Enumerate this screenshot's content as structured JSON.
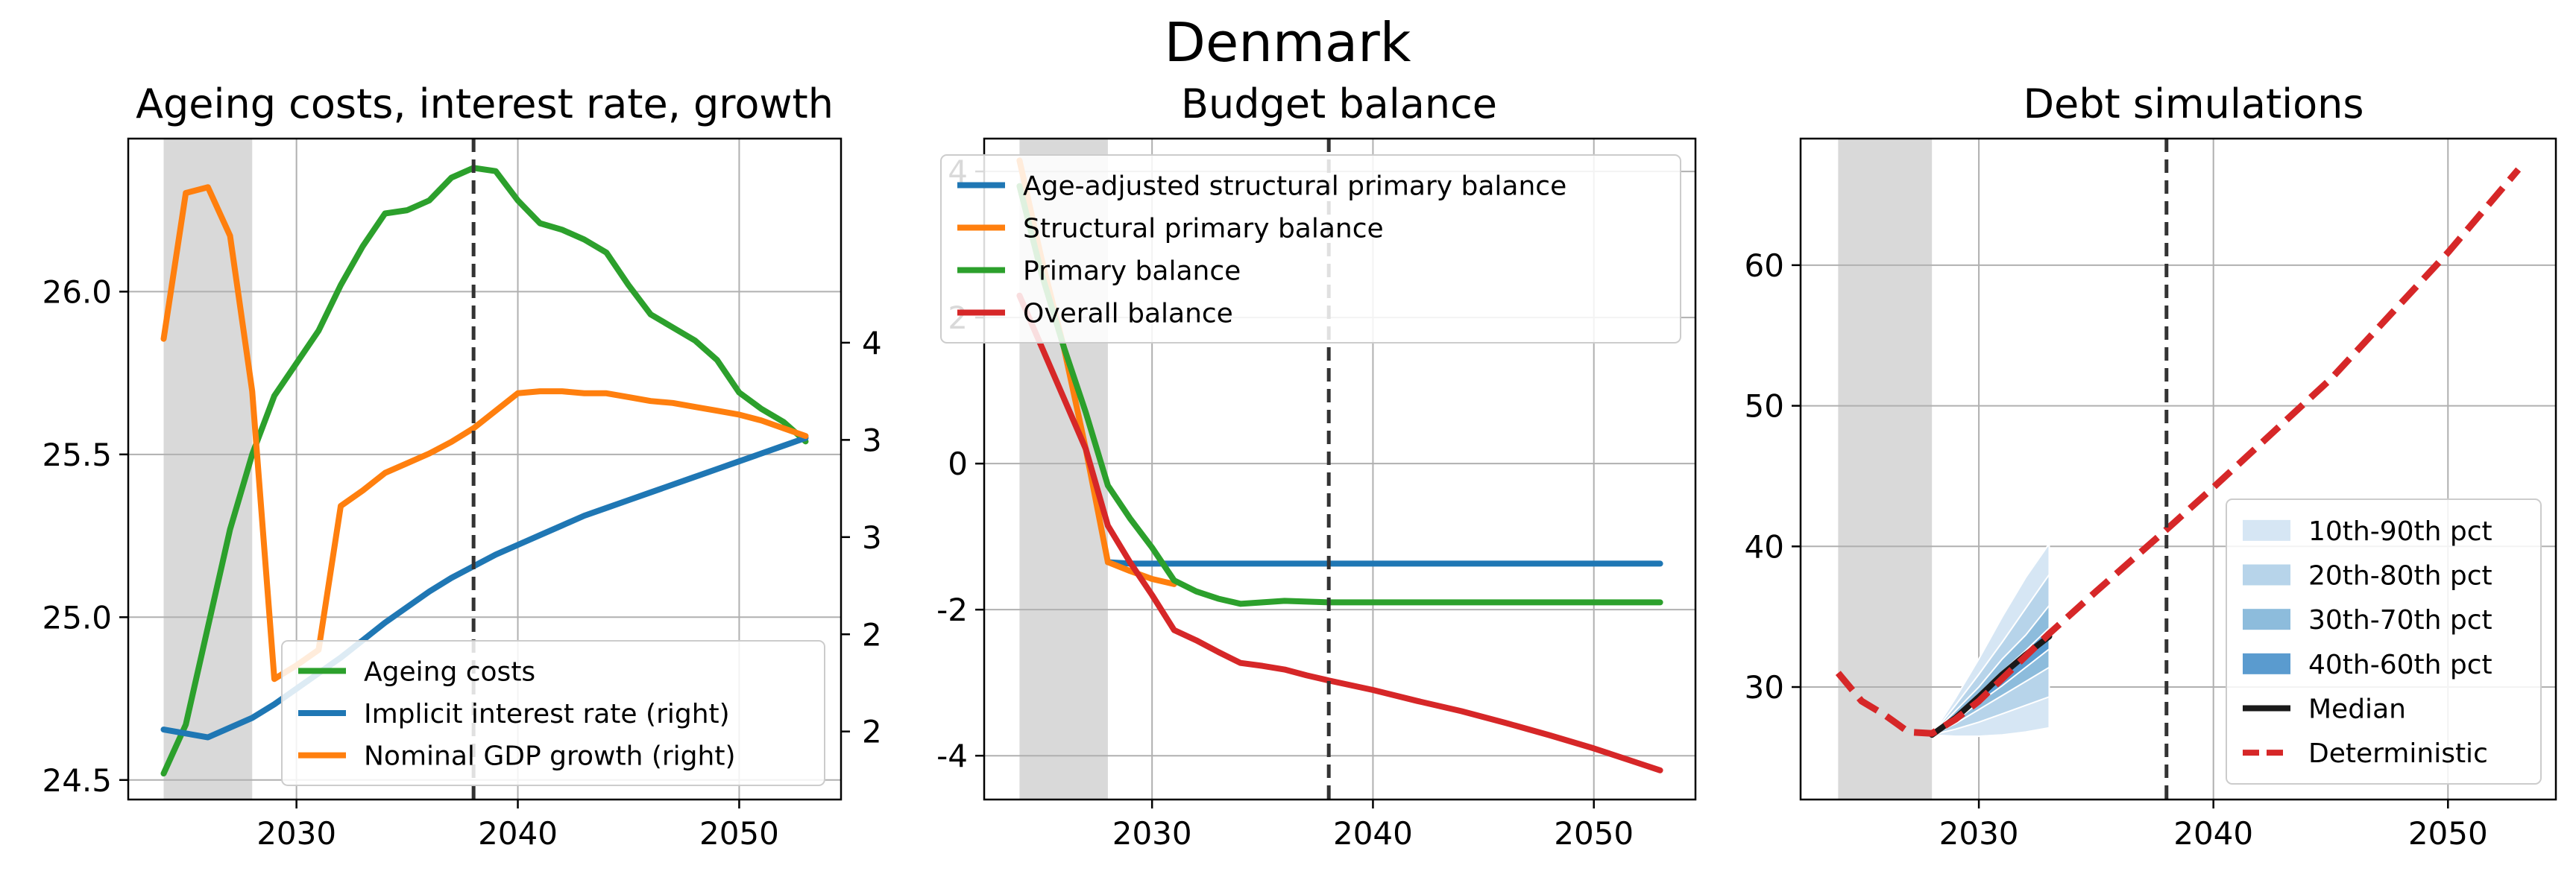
{
  "figure": {
    "suptitle": "Denmark"
  },
  "colors": {
    "blue": "#1f77b4",
    "orange": "#ff7f0e",
    "green": "#2ca02c",
    "red": "#d62728",
    "median": "#1a1a1a",
    "deterministic": "#d62728",
    "shade": "#d9d9d9",
    "fan": [
      "#d6e6f4",
      "#b7d4ea",
      "#8dbcdc",
      "#5a9bcf"
    ]
  },
  "chart_data": [
    {
      "type": "line",
      "title": "Ageing costs, interest rate, growth",
      "xlim": [
        2022.4,
        2054.6
      ],
      "xticks": [
        2030,
        2040,
        2050
      ],
      "ylim": [
        24.44,
        26.47
      ],
      "yticks": [
        24.5,
        25.0,
        25.5,
        26.0
      ],
      "ytick_labels": [
        "24.5",
        "25.0",
        "25.5",
        "26.0"
      ],
      "y2lim": [
        1.55,
        4.95
      ],
      "y2ticks": [
        1.9,
        2.4,
        2.9,
        3.4,
        3.9
      ],
      "y2tick_labels": [
        "2",
        "2",
        "3",
        "3",
        "4"
      ],
      "shade": [
        2024,
        2028
      ],
      "vline": 2038,
      "legend_loc": "lower-right",
      "series": [
        {
          "name": "Ageing costs",
          "axis": "left",
          "color": "#2ca02c",
          "x": [
            2024,
            2025,
            2026,
            2027,
            2028,
            2029,
            2030,
            2031,
            2032,
            2033,
            2034,
            2035,
            2036,
            2037,
            2038,
            2039,
            2040,
            2041,
            2042,
            2043,
            2044,
            2045,
            2046,
            2047,
            2048,
            2049,
            2050,
            2051,
            2052,
            2053
          ],
          "y": [
            24.52,
            24.67,
            24.97,
            25.27,
            25.5,
            25.68,
            25.78,
            25.88,
            26.02,
            26.14,
            26.24,
            26.25,
            26.28,
            26.35,
            26.38,
            26.37,
            26.28,
            26.21,
            26.19,
            26.16,
            26.12,
            26.02,
            25.93,
            25.89,
            25.85,
            25.79,
            25.69,
            25.64,
            25.6,
            25.54
          ]
        },
        {
          "name": "Implicit interest rate (right)",
          "axis": "right",
          "color": "#1f77b4",
          "x": [
            2024,
            2025,
            2026,
            2027,
            2028,
            2029,
            2030,
            2031,
            2032,
            2033,
            2034,
            2035,
            2036,
            2037,
            2038,
            2039,
            2040,
            2041,
            2042,
            2043,
            2044,
            2045,
            2046,
            2047,
            2048,
            2049,
            2050,
            2051,
            2052,
            2053
          ],
          "y": [
            1.91,
            1.89,
            1.87,
            1.92,
            1.97,
            2.04,
            2.12,
            2.2,
            2.28,
            2.37,
            2.46,
            2.54,
            2.62,
            2.69,
            2.75,
            2.81,
            2.86,
            2.91,
            2.96,
            3.01,
            3.05,
            3.09,
            3.13,
            3.17,
            3.21,
            3.25,
            3.29,
            3.33,
            3.37,
            3.41
          ]
        },
        {
          "name": "Nominal GDP growth (right)",
          "axis": "right",
          "color": "#ff7f0e",
          "x": [
            2024,
            2025,
            2026,
            2027,
            2028,
            2029,
            2030,
            2031,
            2032,
            2033,
            2034,
            2035,
            2036,
            2037,
            2038,
            2039,
            2040,
            2041,
            2042,
            2043,
            2044,
            2045,
            2046,
            2047,
            2048,
            2049,
            2050,
            2051,
            2052,
            2053
          ],
          "y": [
            3.92,
            4.67,
            4.7,
            4.45,
            3.65,
            2.17,
            2.24,
            2.32,
            3.06,
            3.14,
            3.23,
            3.28,
            3.33,
            3.39,
            3.46,
            3.55,
            3.64,
            3.65,
            3.65,
            3.64,
            3.64,
            3.62,
            3.6,
            3.59,
            3.57,
            3.55,
            3.53,
            3.5,
            3.46,
            3.42
          ]
        }
      ]
    },
    {
      "type": "line",
      "title": "Budget balance",
      "xlim": [
        2022.4,
        2054.6
      ],
      "xticks": [
        2030,
        2040,
        2050
      ],
      "ylim": [
        -4.6,
        4.45
      ],
      "yticks": [
        -4,
        -2,
        0,
        2,
        4
      ],
      "ytick_labels": [
        "-4",
        "-2",
        "0",
        "2",
        "4"
      ],
      "shade": [
        2024,
        2028
      ],
      "vline": 2038,
      "legend_loc": "upper-right",
      "series": [
        {
          "name": "Age-adjusted structural primary balance",
          "color": "#1f77b4",
          "x": [
            2028,
            2029,
            2030,
            2031,
            2032,
            2034,
            2036,
            2038,
            2040,
            2045,
            2050,
            2053
          ],
          "y": [
            -1.35,
            -1.37,
            -1.37,
            -1.37,
            -1.37,
            -1.37,
            -1.37,
            -1.37,
            -1.37,
            -1.37,
            -1.37,
            -1.37
          ]
        },
        {
          "name": "Structural primary balance",
          "color": "#ff7f0e",
          "x": [
            2024,
            2025,
            2026,
            2027,
            2028,
            2029,
            2030,
            2031
          ],
          "y": [
            4.15,
            2.8,
            1.6,
            0.2,
            -1.35,
            -1.47,
            -1.58,
            -1.65
          ]
        },
        {
          "name": "Primary balance",
          "color": "#2ca02c",
          "x": [
            2024,
            2025,
            2026,
            2027,
            2028,
            2029,
            2030,
            2031,
            2032,
            2033,
            2034,
            2035,
            2036,
            2037,
            2038,
            2040,
            2045,
            2050,
            2053
          ],
          "y": [
            3.8,
            2.6,
            1.6,
            0.7,
            -0.3,
            -0.75,
            -1.15,
            -1.6,
            -1.75,
            -1.85,
            -1.92,
            -1.9,
            -1.88,
            -1.89,
            -1.9,
            -1.9,
            -1.9,
            -1.9,
            -1.9
          ]
        },
        {
          "name": "Overall balance",
          "color": "#d62728",
          "x": [
            2024,
            2025,
            2026,
            2027,
            2028,
            2029,
            2030,
            2031,
            2032,
            2033,
            2034,
            2035,
            2036,
            2037,
            2038,
            2040,
            2042,
            2044,
            2046,
            2048,
            2050,
            2052,
            2053
          ],
          "y": [
            2.3,
            1.6,
            0.9,
            0.2,
            -0.85,
            -1.35,
            -1.8,
            -2.28,
            -2.42,
            -2.58,
            -2.73,
            -2.77,
            -2.82,
            -2.9,
            -2.97,
            -3.1,
            -3.25,
            -3.39,
            -3.55,
            -3.72,
            -3.9,
            -4.1,
            -4.2
          ]
        }
      ]
    },
    {
      "type": "line",
      "title": "Debt simulations",
      "xlim": [
        2022.4,
        2054.6
      ],
      "xticks": [
        2030,
        2040,
        2050
      ],
      "ylim": [
        22,
        69
      ],
      "yticks": [
        30,
        40,
        50,
        60
      ],
      "ytick_labels": [
        "30",
        "40",
        "50",
        "60"
      ],
      "shade": [
        2024,
        2028
      ],
      "vline": 2038,
      "legend_loc": "lower-right",
      "fan_x": [
        2028,
        2029,
        2030,
        2031,
        2032,
        2033
      ],
      "fans": [
        {
          "name": "10th-90th pct",
          "lower": [
            26.6,
            26.5,
            26.5,
            26.6,
            26.8,
            27.1
          ],
          "upper": [
            26.6,
            29.2,
            32.0,
            35.0,
            37.8,
            40.2
          ]
        },
        {
          "name": "20th-80th pct",
          "lower": [
            26.6,
            27.0,
            27.5,
            28.1,
            28.7,
            29.3
          ],
          "upper": [
            26.6,
            28.7,
            30.9,
            33.2,
            35.6,
            38.0
          ]
        },
        {
          "name": "30th-70th pct",
          "lower": [
            26.6,
            27.4,
            28.4,
            29.4,
            30.4,
            31.4
          ],
          "upper": [
            26.6,
            28.3,
            30.0,
            32.0,
            33.7,
            35.8
          ]
        },
        {
          "name": "40th-60th pct",
          "lower": [
            26.6,
            27.6,
            28.9,
            30.1,
            31.4,
            32.7
          ],
          "upper": [
            26.6,
            28.0,
            29.5,
            31.1,
            32.6,
            34.2
          ]
        }
      ],
      "series": [
        {
          "name": "Median",
          "color": "#1a1a1a",
          "style": "solid",
          "x": [
            2028,
            2029,
            2030,
            2031,
            2032,
            2033
          ],
          "y": [
            26.6,
            27.8,
            29.3,
            30.9,
            32.3,
            33.6
          ]
        },
        {
          "name": "Deterministic",
          "color": "#d62728",
          "style": "dashed",
          "x": [
            2024,
            2025,
            2026,
            2027,
            2028,
            2029,
            2030,
            2031,
            2032,
            2033,
            2035,
            2038,
            2040,
            2045,
            2050,
            2053
          ],
          "y": [
            31.0,
            29.0,
            28.0,
            26.8,
            26.7,
            27.7,
            29.0,
            30.6,
            32.2,
            33.8,
            36.8,
            41.2,
            44.2,
            51.9,
            60.9,
            66.8
          ]
        }
      ]
    }
  ]
}
